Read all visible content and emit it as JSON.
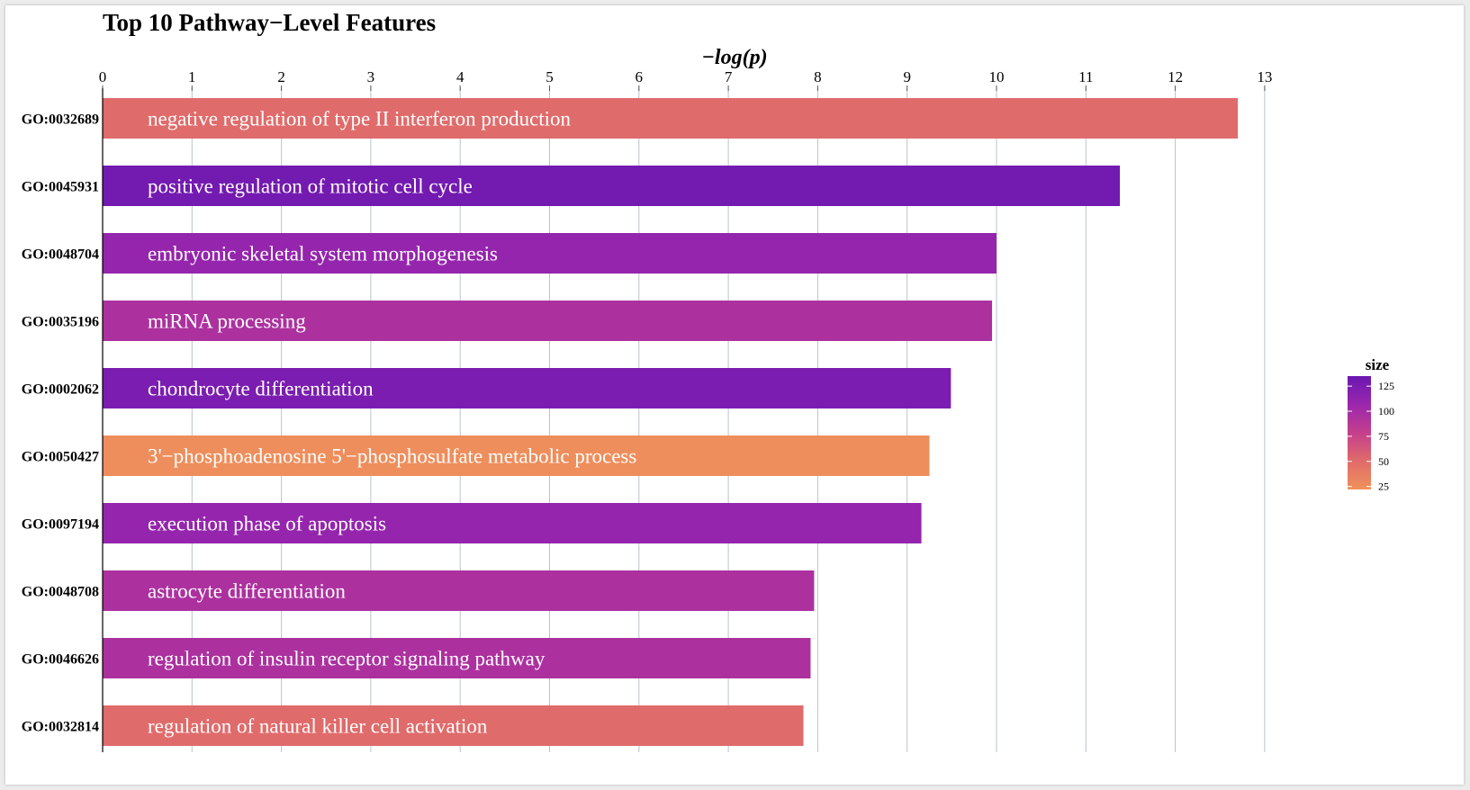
{
  "chart_data": {
    "type": "bar",
    "orientation": "horizontal",
    "title": "Top 10 Pathway−Level Features",
    "xlabel": "−log(p)",
    "xlim": [
      0,
      13
    ],
    "x_ticks": [
      0,
      1,
      2,
      3,
      4,
      5,
      6,
      7,
      8,
      9,
      10,
      11,
      12,
      13
    ],
    "x_axis_position": "top",
    "grid": "vertical",
    "categories": [
      "GO:0032689",
      "GO:0045931",
      "GO:0048704",
      "GO:0035196",
      "GO:0002062",
      "GO:0050427",
      "GO:0097194",
      "GO:0048708",
      "GO:0046626",
      "GO:0032814"
    ],
    "labels": [
      "negative regulation of type II interferon production",
      "positive regulation of mitotic cell cycle",
      "embryonic skeletal system morphogenesis",
      "miRNA processing",
      "chondrocyte differentiation",
      "3'−phosphoadenosine 5'−phosphosulfate metabolic process",
      "execution phase of apoptosis",
      "astrocyte differentiation",
      "regulation of insulin receptor signaling pathway",
      "regulation of natural killer cell activation"
    ],
    "values": [
      12.7,
      11.38,
      10.0,
      9.95,
      9.49,
      9.25,
      9.16,
      7.96,
      7.92,
      7.84
    ],
    "size": [
      50,
      130,
      110,
      95,
      125,
      25,
      110,
      95,
      95,
      50
    ],
    "legend": {
      "title": "size",
      "position": "right",
      "ticks": [
        125,
        100,
        75,
        50,
        25
      ],
      "range": [
        22,
        135
      ],
      "colors": [
        "#f0925a",
        "#e06b6b",
        "#c43f8c",
        "#9b27ad",
        "#6a17b1"
      ]
    }
  }
}
